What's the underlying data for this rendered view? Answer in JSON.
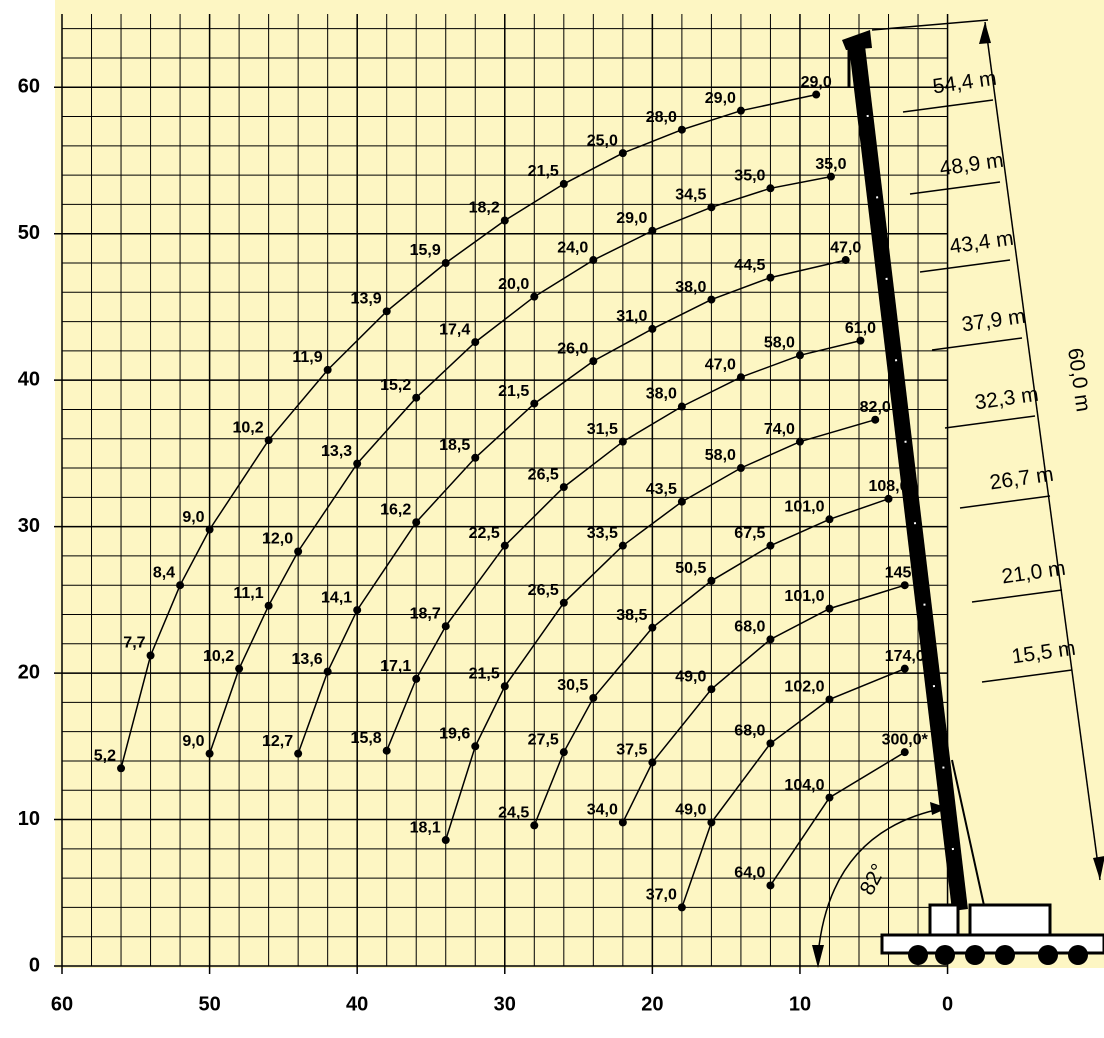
{
  "chart_data": {
    "type": "line",
    "xlim": [
      60,
      -10.6
    ],
    "ylim": [
      0,
      65
    ],
    "xticks": [
      60,
      50,
      40,
      30,
      20,
      10,
      0
    ],
    "yticks": [
      0,
      10,
      20,
      30,
      40,
      50,
      60
    ],
    "grid": true,
    "color": "#000000",
    "background": "#fdf6c3",
    "series": [
      {
        "name": "54,4 m",
        "x": [
          56,
          54,
          52,
          50,
          46,
          42,
          38,
          34,
          30,
          26,
          22,
          18,
          14,
          8.9
        ],
        "values": [
          13.5,
          21.2,
          26.0,
          29.8,
          35.9,
          40.7,
          44.7,
          48.0,
          50.9,
          53.4,
          55.5,
          57.1,
          58.4,
          59.5
        ],
        "value_labels": [
          "5,2",
          "7,7",
          "8,4",
          "9,0",
          "10,2",
          "11,9",
          "13,9",
          "15,9",
          "18,2",
          "21,5",
          "25,0",
          "28,0",
          "29,0",
          "29,0"
        ]
      },
      {
        "name": "48,9 m",
        "x": [
          50,
          48,
          46,
          44,
          40,
          36,
          32,
          28,
          24,
          20,
          16,
          12,
          7.9
        ],
        "values": [
          14.5,
          20.3,
          24.6,
          28.3,
          34.3,
          38.8,
          42.6,
          45.7,
          48.2,
          50.2,
          51.8,
          53.1,
          53.9
        ],
        "value_labels": [
          "9,0",
          "10,2",
          "11,1",
          "12,0",
          "13,3",
          "15,2",
          "17,4",
          "20,0",
          "24,0",
          "29,0",
          "34,5",
          "35,0",
          "35,0"
        ]
      },
      {
        "name": "43,4 m",
        "x": [
          44,
          42,
          40,
          36,
          32,
          28,
          24,
          20,
          16,
          12,
          6.9
        ],
        "values": [
          14.5,
          20.1,
          24.3,
          30.3,
          34.7,
          38.4,
          41.3,
          43.5,
          45.5,
          47.0,
          48.2
        ],
        "value_labels": [
          "12,7",
          "13,6",
          "14,1",
          "16,2",
          "18,5",
          "21,5",
          "26,0",
          "31,0",
          "38,0",
          "44,5",
          "47,0"
        ]
      },
      {
        "name": "37,9 m",
        "x": [
          38,
          36,
          34,
          30,
          26,
          22,
          18,
          14,
          10,
          5.9
        ],
        "values": [
          14.7,
          19.6,
          23.2,
          28.7,
          32.7,
          35.8,
          38.2,
          40.2,
          41.7,
          42.7
        ],
        "value_labels": [
          "15,8",
          "17,1",
          "18,7",
          "22,5",
          "26,5",
          "31,5",
          "38,0",
          "47,0",
          "58,0",
          "61,0"
        ]
      },
      {
        "name": "32,3 m",
        "x": [
          34,
          32,
          30,
          26,
          22,
          18,
          14,
          10,
          4.9
        ],
        "values": [
          8.6,
          15.0,
          19.1,
          24.8,
          28.7,
          31.7,
          34.0,
          35.8,
          37.3
        ],
        "value_labels": [
          "18,1",
          "19,6",
          "21,5",
          "26,5",
          "33,5",
          "43,5",
          "58,0",
          "74,0",
          "82,0"
        ]
      },
      {
        "name": "26,7 m",
        "x": [
          28,
          26,
          24,
          20,
          16,
          12,
          8,
          4
        ],
        "values": [
          9.6,
          14.6,
          18.3,
          23.1,
          26.3,
          28.7,
          30.5,
          31.9
        ],
        "value_labels": [
          "24,5",
          "27,5",
          "30,5",
          "38,5",
          "50,5",
          "67,5",
          "101,0",
          "108,0"
        ]
      },
      {
        "name": "21,0 m",
        "x": [
          22,
          20,
          16,
          12,
          8,
          2.9
        ],
        "values": [
          9.8,
          13.9,
          18.9,
          22.3,
          24.4,
          26.0
        ],
        "value_labels": [
          "34,0",
          "37,5",
          "49,0",
          "68,0",
          "101,0",
          "145,0"
        ]
      },
      {
        "name": "15,5 m",
        "x": [
          18,
          16,
          12,
          8,
          2.9
        ],
        "values": [
          4.0,
          9.8,
          15.2,
          18.2,
          20.3
        ],
        "value_labels": [
          "37,0",
          "49,0",
          "68,0",
          "102,0",
          "174,0"
        ]
      },
      {
        "x": [
          12,
          8,
          2.9
        ],
        "values": [
          5.5,
          11.5,
          14.6
        ],
        "value_labels": [
          "64,0",
          "104,0",
          "300,0*"
        ]
      }
    ],
    "annotations": [
      "60,0 m",
      "82°"
    ]
  }
}
